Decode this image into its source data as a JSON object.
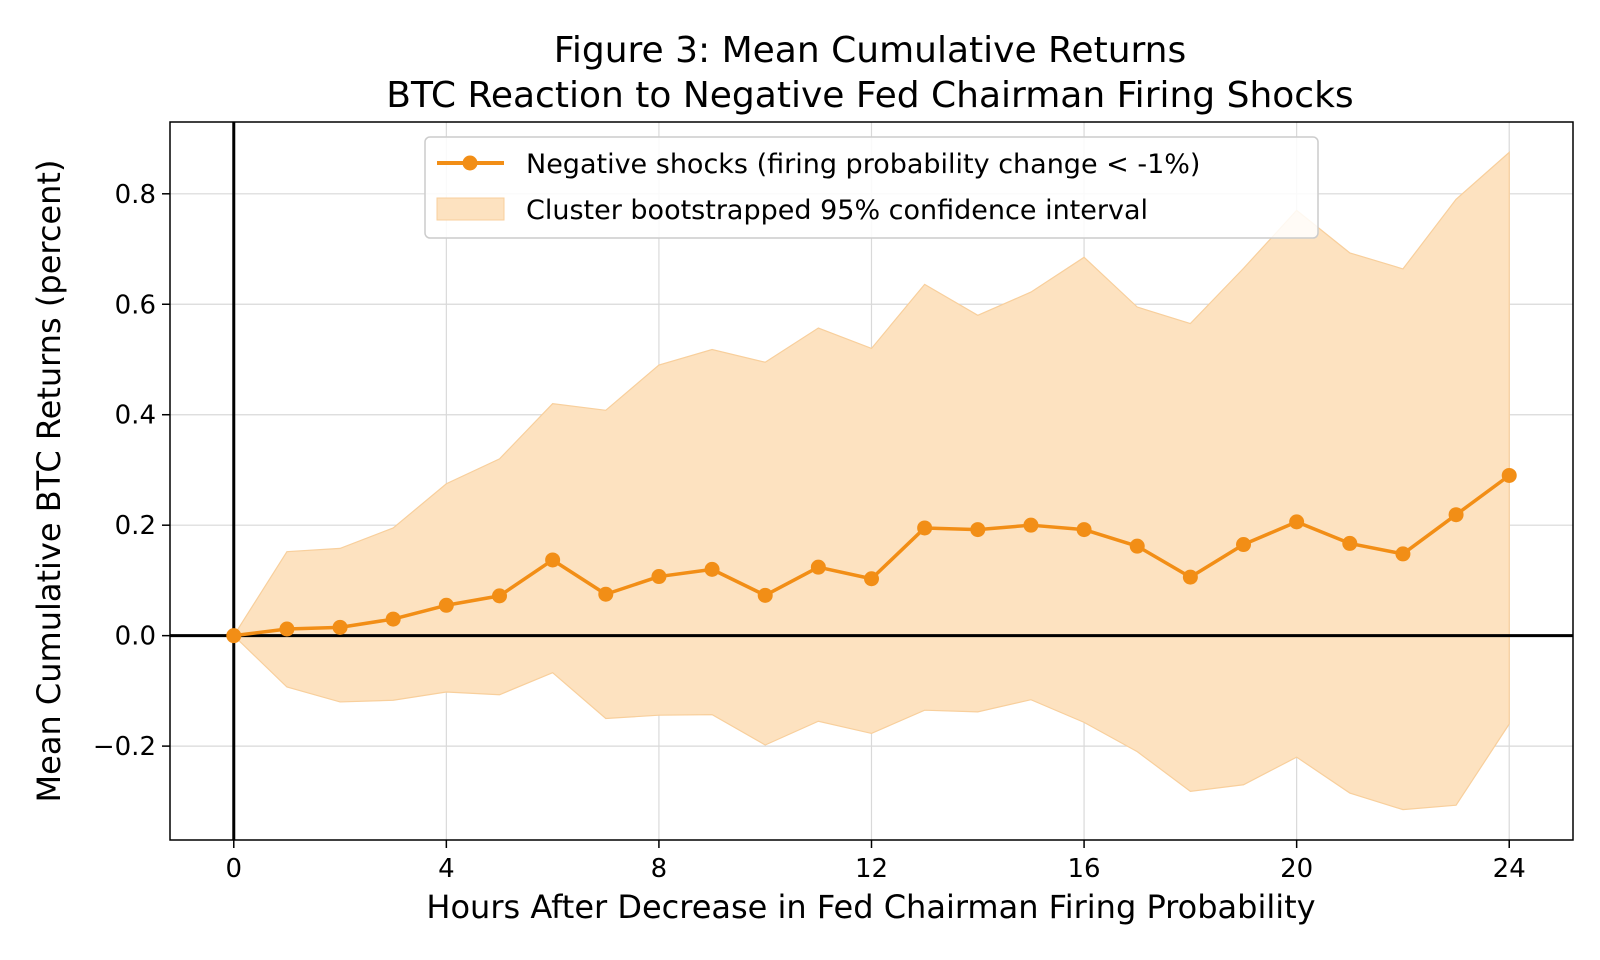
{
  "chart_data": {
    "type": "line",
    "title": "Figure 3: Mean Cumulative Returns",
    "subtitle": "BTC Reaction to Negative Fed Chairman Firing Shocks",
    "xlabel": "Hours After Decrease in Fed Chairman Firing Probability",
    "ylabel": "Mean Cumulative BTC Returns (percent)",
    "xlim": [
      -1.2,
      25.2
    ],
    "ylim": [
      -0.37,
      0.93
    ],
    "x_ticks": [
      0,
      4,
      8,
      12,
      16,
      20,
      24
    ],
    "x_tick_labels": [
      "0",
      "4",
      "8",
      "12",
      "16",
      "20",
      "24"
    ],
    "y_ticks": [
      -0.2,
      0.0,
      0.2,
      0.4,
      0.6,
      0.8
    ],
    "y_tick_labels": [
      "−0.2",
      "0.0",
      "0.2",
      "0.4",
      "0.6",
      "0.8"
    ],
    "grid": true,
    "legend_position": "top-center",
    "reference_lines": {
      "x": 0,
      "y": 0
    },
    "colors": {
      "line": "#f28e16",
      "band": "#fde2c0",
      "band_edge": "#f8cf9c",
      "reference": "#000000"
    },
    "x": [
      0,
      1,
      2,
      3,
      4,
      5,
      6,
      7,
      8,
      9,
      10,
      11,
      12,
      13,
      14,
      15,
      16,
      17,
      18,
      19,
      20,
      21,
      22,
      23,
      24
    ],
    "series": [
      {
        "name": "Negative shocks (firing probability change < -1%)",
        "values": [
          0.0,
          0.012,
          0.015,
          0.03,
          0.055,
          0.072,
          0.137,
          0.075,
          0.107,
          0.12,
          0.073,
          0.124,
          0.103,
          0.195,
          0.192,
          0.2,
          0.192,
          0.162,
          0.106,
          0.165,
          0.206,
          0.167,
          0.148,
          0.219,
          0.29
        ]
      }
    ],
    "confidence_band": {
      "name": "Cluster bootstrapped 95% confidence interval",
      "upper": [
        0.0,
        0.152,
        0.158,
        0.195,
        0.275,
        0.32,
        0.42,
        0.408,
        0.49,
        0.518,
        0.495,
        0.557,
        0.52,
        0.636,
        0.58,
        0.622,
        0.685,
        0.595,
        0.565,
        0.665,
        0.77,
        0.693,
        0.664,
        0.79,
        0.875
      ],
      "lower": [
        0.0,
        -0.093,
        -0.12,
        -0.117,
        -0.102,
        -0.107,
        -0.067,
        -0.15,
        -0.144,
        -0.143,
        -0.198,
        -0.155,
        -0.177,
        -0.135,
        -0.138,
        -0.116,
        -0.157,
        -0.21,
        -0.282,
        -0.27,
        -0.22,
        -0.285,
        -0.315,
        -0.307,
        -0.16
      ]
    }
  }
}
